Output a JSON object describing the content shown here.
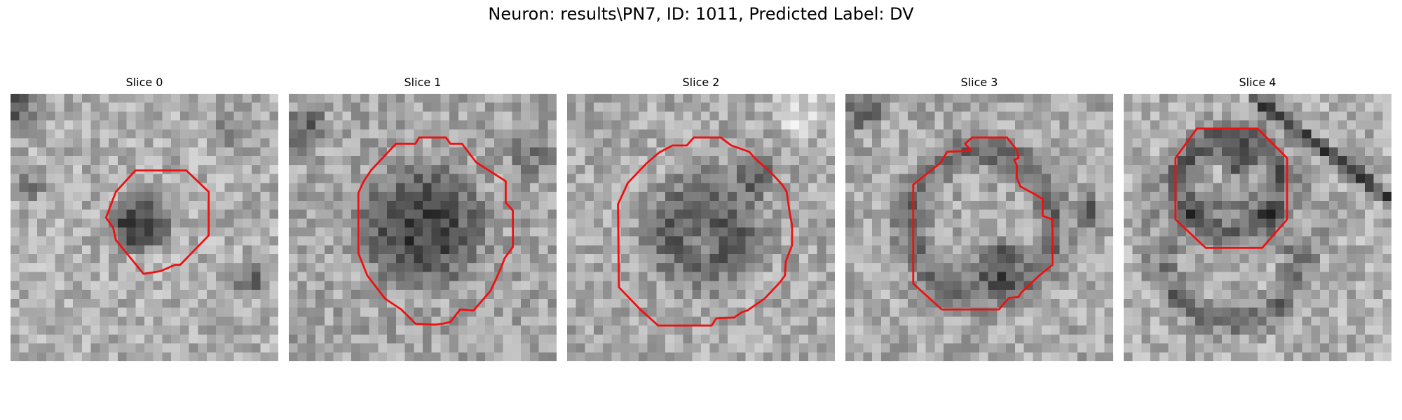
{
  "figure": {
    "title": "Neuron: results\\PN7, ID: 1011, Predicted Label: DV",
    "contour_color": "#ee1111"
  },
  "panels": [
    {
      "title": "Slice 0"
    },
    {
      "title": "Slice 1"
    },
    {
      "title": "Slice 2"
    },
    {
      "title": "Slice 3"
    },
    {
      "title": "Slice 4"
    }
  ]
}
